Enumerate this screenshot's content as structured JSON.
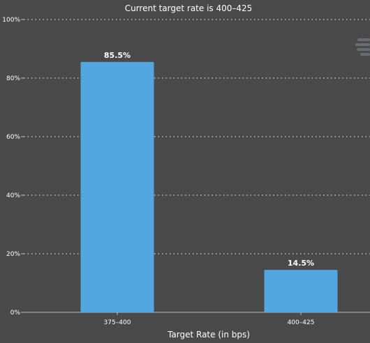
{
  "chart_data": {
    "type": "bar",
    "title": "Current target rate is 400–425",
    "xlabel": "Target Rate (in bps)",
    "ylabel": "",
    "categories": [
      "375–400",
      "400–425"
    ],
    "values": [
      85.5,
      14.5
    ],
    "data_labels": [
      "85.5%",
      "14.5%"
    ],
    "ylim": [
      0,
      100
    ],
    "yticks": [
      0,
      20,
      40,
      60,
      80,
      100
    ],
    "ytick_labels": [
      "0%",
      "20%",
      "40%",
      "60%",
      "80%",
      "100%"
    ],
    "grid": true,
    "legend": "none",
    "bar_color": "#53a7e0",
    "background_color": "#4a4a4a"
  }
}
